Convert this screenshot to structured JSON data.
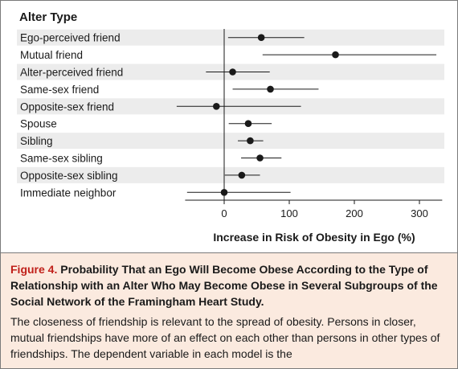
{
  "chart_data": {
    "type": "forest",
    "category_header": "Alter Type",
    "xlabel": "Increase in Risk of Obesity in Ego (%)",
    "xlim": [
      -60,
      335
    ],
    "xticks": [
      0,
      100,
      200,
      300
    ],
    "reference_line": 0,
    "grid": false,
    "rows": [
      {
        "label": "Ego-perceived friend",
        "estimate": 57,
        "lower": 6,
        "upper": 123
      },
      {
        "label": "Mutual friend",
        "estimate": 171,
        "lower": 59,
        "upper": 326
      },
      {
        "label": "Alter-perceived friend",
        "estimate": 13,
        "lower": -28,
        "upper": 70
      },
      {
        "label": "Same-sex friend",
        "estimate": 71,
        "lower": 13,
        "upper": 145
      },
      {
        "label": "Opposite-sex friend",
        "estimate": -12,
        "lower": -73,
        "upper": 118
      },
      {
        "label": "Spouse",
        "estimate": 37,
        "lower": 7,
        "upper": 73
      },
      {
        "label": "Sibling",
        "estimate": 40,
        "lower": 21,
        "upper": 60
      },
      {
        "label": "Same-sex sibling",
        "estimate": 55,
        "lower": 26,
        "upper": 88
      },
      {
        "label": "Opposite-sex sibling",
        "estimate": 27,
        "lower": 1,
        "upper": 55
      },
      {
        "label": "Immediate neighbor",
        "estimate": 0,
        "lower": -57,
        "upper": 102
      }
    ]
  },
  "caption": {
    "fig_num": "Figure 4.",
    "title": "Probability That an Ego Will Become Obese According to the Type of Relationship with an Alter Who May Become Obese in Several Subgroups of the Social Network of the Framingham Heart Study.",
    "body": "The closeness of friendship is relevant to the spread of obesity. Persons in closer, mutual friendships have more of an effect on each other than persons in other types of friendships. The dependent variable in each model is the"
  },
  "colors": {
    "stripe": "#ececec",
    "marker": "#1a1a1a",
    "fig_num": "#c0201a",
    "caption_bg": "#fbeadf"
  }
}
